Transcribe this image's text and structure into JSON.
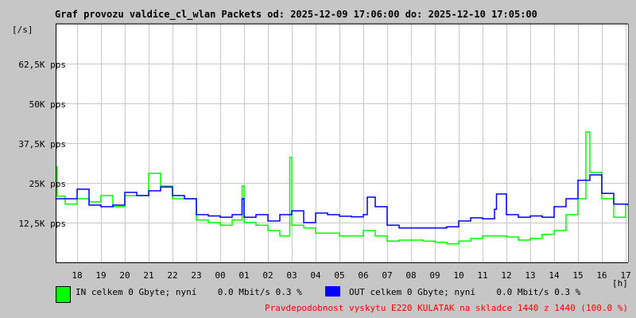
{
  "chart_data": {
    "type": "line",
    "title": "Graf provozu valdice_cl_wlan Packets od: 2025-12-09 17:06:00 do: 2025-12-10 17:05:00",
    "ylabel": "[/s]",
    "xlabel": "[h]",
    "x_start": "2025-12-09 17:06",
    "x_end": "2025-12-10 17:05",
    "ylim": [
      0,
      75
    ],
    "y_unit": "K pps",
    "y_ticks": [
      {
        "value": 12.5,
        "label": "12,5K pps"
      },
      {
        "value": 25,
        "label": "25K pps"
      },
      {
        "value": 37.5,
        "label": "37,5K pps"
      },
      {
        "value": 50,
        "label": "50K pps"
      },
      {
        "value": 62.5,
        "label": "62,5K pps"
      }
    ],
    "x_ticks": [
      "18",
      "19",
      "20",
      "21",
      "22",
      "23",
      "00",
      "01",
      "02",
      "03",
      "04",
      "05",
      "06",
      "07",
      "08",
      "09",
      "10",
      "11",
      "12",
      "13",
      "14",
      "15",
      "16",
      "17"
    ],
    "grid": true,
    "colors": {
      "in": "#00ff00",
      "out": "#0000ff",
      "grid": "#c8c8c8",
      "background": "#c6c6c6",
      "plot": "#ffffff"
    },
    "series": [
      {
        "name": "IN",
        "color": "#00ff00",
        "points": [
          [
            "17:06",
            30
          ],
          [
            "17:10",
            20.8
          ],
          [
            "17:30",
            18.3
          ],
          [
            "18:00",
            20
          ],
          [
            "18:30",
            19
          ],
          [
            "19:00",
            21
          ],
          [
            "19:30",
            17.5
          ],
          [
            "20:00",
            21
          ],
          [
            "20:30",
            21
          ],
          [
            "21:00",
            28
          ],
          [
            "21:30",
            24
          ],
          [
            "22:00",
            20
          ],
          [
            "22:30",
            20
          ],
          [
            "23:00",
            13.3
          ],
          [
            "23:30",
            12.5
          ],
          [
            "00:00",
            11.7
          ],
          [
            "00:30",
            13.3
          ],
          [
            "00:55",
            24
          ],
          [
            "01:00",
            12.5
          ],
          [
            "01:30",
            11.7
          ],
          [
            "02:00",
            10
          ],
          [
            "02:30",
            8.3
          ],
          [
            "02:55",
            33
          ],
          [
            "03:00",
            11.7
          ],
          [
            "03:30",
            10.8
          ],
          [
            "04:00",
            9.2
          ],
          [
            "04:30",
            9.2
          ],
          [
            "05:00",
            8.3
          ],
          [
            "05:30",
            8.3
          ],
          [
            "06:00",
            10
          ],
          [
            "06:30",
            8.3
          ],
          [
            "07:00",
            6.7
          ],
          [
            "07:30",
            7
          ],
          [
            "08:00",
            7
          ],
          [
            "08:30",
            6.7
          ],
          [
            "09:00",
            6.3
          ],
          [
            "09:30",
            5.8
          ],
          [
            "10:00",
            6.7
          ],
          [
            "10:30",
            7.5
          ],
          [
            "11:00",
            8.3
          ],
          [
            "11:30",
            8.3
          ],
          [
            "12:00",
            8
          ],
          [
            "12:30",
            7
          ],
          [
            "13:00",
            7.5
          ],
          [
            "13:30",
            8.8
          ],
          [
            "14:00",
            10
          ],
          [
            "14:30",
            15
          ],
          [
            "15:00",
            20
          ],
          [
            "15:20",
            41
          ],
          [
            "15:30",
            28.3
          ],
          [
            "16:00",
            20
          ],
          [
            "16:30",
            14.2
          ],
          [
            "17:00",
            18.3
          ],
          [
            "17:05",
            18
          ]
        ]
      },
      {
        "name": "OUT",
        "color": "#0000ff",
        "points": [
          [
            "17:06",
            20
          ],
          [
            "17:30",
            20
          ],
          [
            "18:00",
            23
          ],
          [
            "18:30",
            18
          ],
          [
            "19:00",
            17.5
          ],
          [
            "19:30",
            18
          ],
          [
            "20:00",
            22
          ],
          [
            "20:30",
            21
          ],
          [
            "21:00",
            22.5
          ],
          [
            "21:30",
            23.7
          ],
          [
            "22:00",
            21
          ],
          [
            "22:30",
            20
          ],
          [
            "23:00",
            15
          ],
          [
            "23:30",
            14.6
          ],
          [
            "00:00",
            14.2
          ],
          [
            "00:30",
            15
          ],
          [
            "00:55",
            20
          ],
          [
            "01:00",
            14.2
          ],
          [
            "01:30",
            15
          ],
          [
            "02:00",
            13
          ],
          [
            "02:30",
            15
          ],
          [
            "03:00",
            16.2
          ],
          [
            "03:30",
            12.5
          ],
          [
            "04:00",
            15.5
          ],
          [
            "04:30",
            15
          ],
          [
            "05:00",
            14.5
          ],
          [
            "05:30",
            14.3
          ],
          [
            "06:00",
            15
          ],
          [
            "06:10",
            20.5
          ],
          [
            "06:30",
            17.5
          ],
          [
            "07:00",
            11.7
          ],
          [
            "07:30",
            10.8
          ],
          [
            "08:00",
            10.8
          ],
          [
            "08:30",
            10.8
          ],
          [
            "09:00",
            10.8
          ],
          [
            "09:30",
            11.2
          ],
          [
            "10:00",
            13
          ],
          [
            "10:30",
            14
          ],
          [
            "11:00",
            13.7
          ],
          [
            "11:30",
            16.7
          ],
          [
            "11:35",
            21.5
          ],
          [
            "12:00",
            15
          ],
          [
            "12:30",
            14.2
          ],
          [
            "13:00",
            14.6
          ],
          [
            "13:30",
            14.2
          ],
          [
            "14:00",
            17.5
          ],
          [
            "14:30",
            20
          ],
          [
            "15:00",
            25.8
          ],
          [
            "15:30",
            27.5
          ],
          [
            "16:00",
            21.7
          ],
          [
            "16:30",
            18.3
          ],
          [
            "17:00",
            18.3
          ],
          [
            "17:05",
            18
          ]
        ]
      }
    ],
    "legend": [
      {
        "series": "IN",
        "color": "#00ff00",
        "text": "IN celkem 0 Gbyte; nyní    0.0 Mbit/s 0.3 %"
      },
      {
        "series": "OUT",
        "color": "#0000ff",
        "text": "OUT celkem 0 Gbyte; nyní    0.0 Mbit/s 0.3 %"
      }
    ],
    "annotation": "Pravdepodobnost vyskytu E220 KULATAK na skladce 1440 z 1440 (100.0 %)"
  }
}
